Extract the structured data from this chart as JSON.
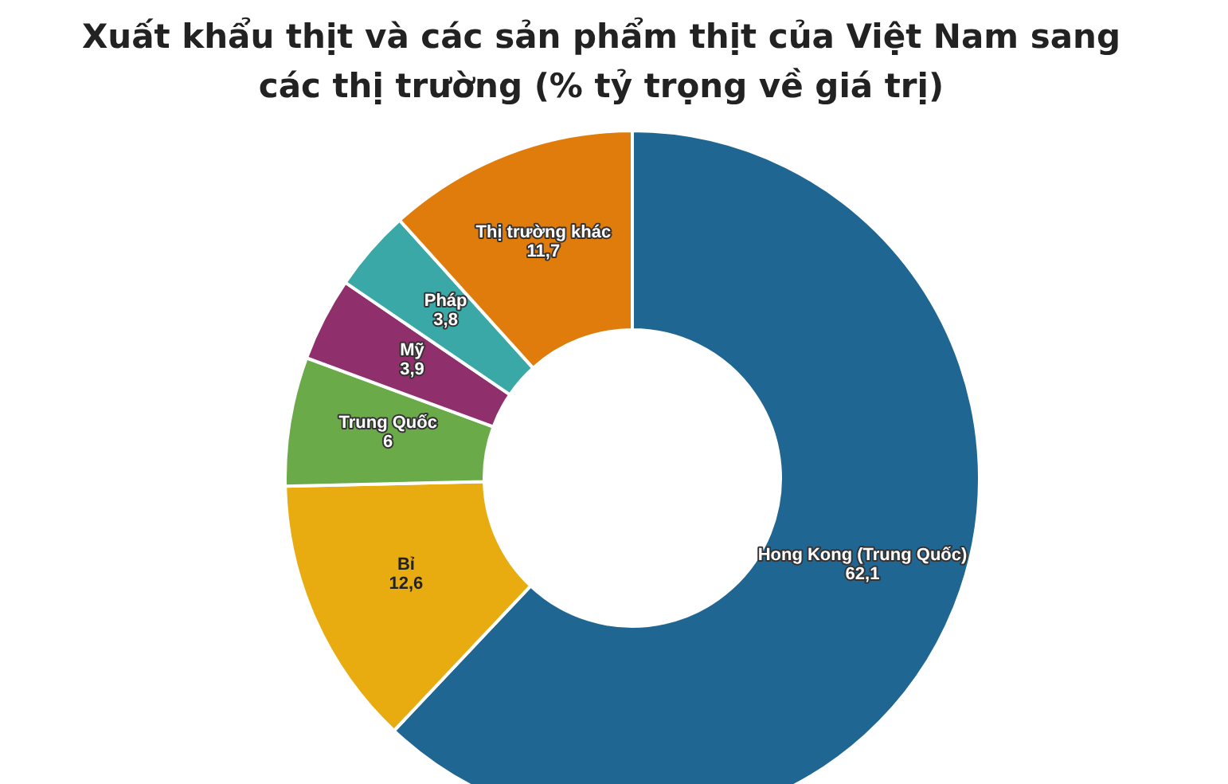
{
  "chart_data": {
    "type": "donut",
    "title": "Xuất khẩu thịt và các sản phẩm thịt của Việt Nam sang các thị trường (% tỷ trọng về giá trị)",
    "categories": [
      "Hong Kong (Trung Quốc)",
      "Bỉ",
      "Trung Quốc",
      "Mỹ",
      "Pháp",
      "Thị trường khác"
    ],
    "values": [
      62.1,
      12.6,
      6,
      3.9,
      3.8,
      11.7
    ],
    "value_labels": [
      "62,1",
      "12,6",
      "6",
      "3,9",
      "3,8",
      "11,7"
    ],
    "colors": [
      "#1f6692",
      "#e8ac10",
      "#6aaa48",
      "#8f2f6c",
      "#3aa8a6",
      "#e07c0c"
    ]
  }
}
